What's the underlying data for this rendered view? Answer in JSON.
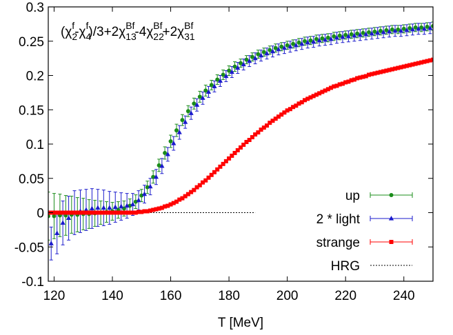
{
  "chart_data": {
    "type": "line",
    "title_parts": [
      {
        "t": "(χ",
        "s": "n"
      },
      {
        "t": "2",
        "s": "sub"
      },
      {
        "t": "f",
        "s": "sup"
      },
      {
        "t": "-χ",
        "s": "n"
      },
      {
        "t": "4",
        "s": "sub"
      },
      {
        "t": "f",
        "s": "sup"
      },
      {
        "t": ")/3+2χ",
        "s": "n"
      },
      {
        "t": "13",
        "s": "sub"
      },
      {
        "t": "Bf",
        "s": "sup"
      },
      {
        "t": "-4χ",
        "s": "n"
      },
      {
        "t": "22",
        "s": "sub"
      },
      {
        "t": "Bf",
        "s": "sup"
      },
      {
        "t": "+2χ",
        "s": "n"
      },
      {
        "t": "31",
        "s": "sub"
      },
      {
        "t": "Bf",
        "s": "sup"
      }
    ],
    "xlabel": "T [MeV]",
    "ylabel": "",
    "xlim": [
      118,
      250
    ],
    "ylim": [
      -0.1,
      0.3
    ],
    "xticks": [
      "120",
      "140",
      "160",
      "180",
      "200",
      "220",
      "240"
    ],
    "yticks": [
      "-0.1",
      "-0.05",
      "0",
      "0.05",
      "0.1",
      "0.15",
      "0.2",
      "0.25",
      "0.3"
    ],
    "legend_position": "bottom-right",
    "series": [
      {
        "name": "up",
        "color": "#1a8c1a",
        "marker": "circle",
        "x_start": 118,
        "x_step": 2,
        "values": [
          -0.005,
          -0.005,
          -0.004,
          -0.004,
          -0.003,
          -0.003,
          -0.002,
          -0.002,
          -0.001,
          0.0,
          0.001,
          0.002,
          0.004,
          0.006,
          0.01,
          0.016,
          0.025,
          0.037,
          0.052,
          0.069,
          0.087,
          0.104,
          0.12,
          0.135,
          0.148,
          0.159,
          0.169,
          0.178,
          0.186,
          0.194,
          0.201,
          0.207,
          0.213,
          0.218,
          0.223,
          0.227,
          0.231,
          0.234,
          0.237,
          0.24,
          0.242,
          0.244,
          0.246,
          0.248,
          0.25,
          0.251,
          0.253,
          0.254,
          0.255,
          0.257,
          0.258,
          0.259,
          0.26,
          0.261,
          0.262,
          0.263,
          0.264,
          0.265,
          0.266,
          0.267,
          0.267,
          0.268,
          0.269,
          0.27,
          0.27,
          0.271,
          0.272
        ],
        "errors": [
          0.035,
          0.033,
          0.031,
          0.029,
          0.027,
          0.025,
          0.023,
          0.021,
          0.019,
          0.017,
          0.015,
          0.013,
          0.012,
          0.011,
          0.01,
          0.01,
          0.009,
          0.009,
          0.009,
          0.009,
          0.009,
          0.009,
          0.009,
          0.008,
          0.008,
          0.008,
          0.008,
          0.008,
          0.007,
          0.007,
          0.007,
          0.007,
          0.007,
          0.006,
          0.006,
          0.006,
          0.006,
          0.006,
          0.006,
          0.006,
          0.006,
          0.006,
          0.006,
          0.006,
          0.006,
          0.006,
          0.006,
          0.006,
          0.006,
          0.006,
          0.006,
          0.006,
          0.006,
          0.006,
          0.006,
          0.006,
          0.006,
          0.006,
          0.006,
          0.006,
          0.006,
          0.006,
          0.006,
          0.006,
          0.006,
          0.006,
          0.006
        ]
      },
      {
        "name": "2 * light",
        "color": "#1a1acc",
        "marker": "triangle",
        "x_start": 119,
        "x_step": 2,
        "values": [
          -0.045,
          -0.03,
          -0.015,
          -0.008,
          0.0,
          0.002,
          0.004,
          0.006,
          0.007,
          0.007,
          0.007,
          0.008,
          0.009,
          0.01,
          0.012,
          0.018,
          0.027,
          0.038,
          0.052,
          0.068,
          0.085,
          0.101,
          0.117,
          0.132,
          0.145,
          0.157,
          0.167,
          0.176,
          0.184,
          0.192,
          0.199,
          0.205,
          0.211,
          0.216,
          0.221,
          0.225,
          0.229,
          0.232,
          0.235,
          0.238,
          0.24,
          0.242,
          0.244,
          0.246,
          0.248,
          0.249,
          0.251,
          0.252,
          0.253,
          0.255,
          0.256,
          0.257,
          0.258,
          0.259,
          0.26,
          0.261,
          0.262,
          0.263,
          0.264,
          0.265,
          0.265,
          0.266,
          0.267,
          0.268,
          0.268,
          0.269
        ],
        "errors": [
          0.024,
          0.03,
          0.032,
          0.032,
          0.032,
          0.031,
          0.03,
          0.029,
          0.027,
          0.026,
          0.024,
          0.022,
          0.02,
          0.018,
          0.016,
          0.014,
          0.013,
          0.012,
          0.011,
          0.011,
          0.01,
          0.01,
          0.01,
          0.009,
          0.009,
          0.009,
          0.009,
          0.008,
          0.008,
          0.008,
          0.008,
          0.008,
          0.008,
          0.008,
          0.008,
          0.008,
          0.008,
          0.008,
          0.008,
          0.008,
          0.008,
          0.008,
          0.008,
          0.008,
          0.008,
          0.008,
          0.008,
          0.008,
          0.008,
          0.008,
          0.008,
          0.008,
          0.008,
          0.008,
          0.008,
          0.008,
          0.008,
          0.008,
          0.008,
          0.008,
          0.008,
          0.008,
          0.008,
          0.008,
          0.008,
          0.008
        ]
      },
      {
        "name": "strange",
        "color": "#ff0000",
        "marker": "square",
        "x_start": 118,
        "x_step": 1,
        "values": [
          0.0,
          0.0,
          0.0,
          0.0,
          0.0,
          0.0,
          0.0,
          0.0,
          0.0,
          0.0,
          0.0,
          0.0,
          0.0,
          0.0,
          0.0,
          0.0,
          0.0,
          0.0,
          0.0,
          0.0,
          0.0,
          0.0,
          0.0,
          0.0,
          0.0,
          0.0,
          0.0,
          0.0,
          0.0,
          0.0,
          0.0,
          0.001,
          0.001,
          0.002,
          0.002,
          0.003,
          0.004,
          0.005,
          0.006,
          0.007,
          0.009,
          0.01,
          0.012,
          0.014,
          0.016,
          0.019,
          0.021,
          0.024,
          0.027,
          0.03,
          0.033,
          0.037,
          0.04,
          0.044,
          0.047,
          0.051,
          0.055,
          0.059,
          0.063,
          0.067,
          0.071,
          0.075,
          0.079,
          0.083,
          0.087,
          0.091,
          0.095,
          0.099,
          0.103,
          0.106,
          0.11,
          0.114,
          0.117,
          0.121,
          0.124,
          0.127,
          0.131,
          0.134,
          0.137,
          0.14,
          0.143,
          0.146,
          0.149,
          0.151,
          0.154,
          0.156,
          0.159,
          0.161,
          0.164,
          0.166,
          0.168,
          0.17,
          0.172,
          0.174,
          0.176,
          0.178,
          0.18,
          0.182,
          0.184,
          0.185,
          0.187,
          0.188,
          0.19,
          0.191,
          0.193,
          0.194,
          0.196,
          0.197,
          0.198,
          0.199,
          0.201,
          0.202,
          0.203,
          0.204,
          0.205,
          0.206,
          0.207,
          0.208,
          0.209,
          0.21,
          0.211,
          0.212,
          0.213,
          0.214,
          0.215,
          0.216,
          0.217,
          0.218,
          0.219,
          0.22,
          0.221,
          0.222,
          0.223
        ]
      },
      {
        "name": "HRG",
        "color": "#000000",
        "marker": "none",
        "dashed": true,
        "x": [
          118,
          189
        ],
        "values": [
          0,
          0
        ]
      }
    ]
  }
}
